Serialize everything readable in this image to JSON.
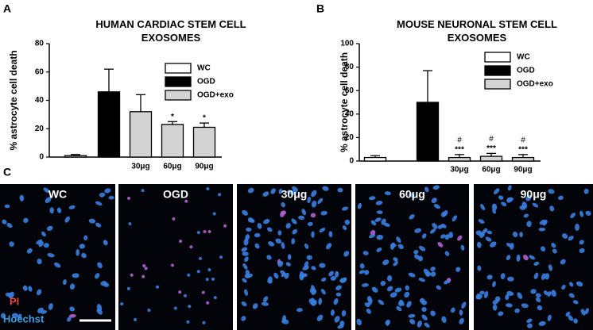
{
  "panel_labels": [
    "A",
    "B",
    "C"
  ],
  "chart_data": [
    {
      "type": "bar",
      "title": "HUMAN CARDIAC STEM CELL EXOSOMES",
      "y_label": "% astrocyte cell death",
      "categories": [
        null,
        null,
        "30μg",
        "60μg",
        "90μg"
      ],
      "values": [
        1,
        46,
        32,
        23,
        21
      ],
      "errors": [
        0.8,
        16,
        12,
        2,
        3
      ],
      "colors": [
        "#ffffff",
        "#000000",
        "#d3d3d3",
        "#d3d3d3",
        "#d3d3d3"
      ],
      "annotations": [
        null,
        null,
        null,
        "*",
        "*"
      ],
      "legend": [
        {
          "name": "WC",
          "color": "#ffffff"
        },
        {
          "name": "OGD",
          "color": "#000000"
        },
        {
          "name": "OGD+exo",
          "color": "#d3d3d3"
        }
      ],
      "ylim": [
        0,
        80
      ],
      "yticks": [
        0,
        20,
        40,
        60,
        80
      ]
    },
    {
      "type": "bar",
      "title": "MOUSE NEURONAL STEM CELL EXOSOMES",
      "y_label": "% astrocyte cell death",
      "categories": [
        null,
        null,
        "30μg",
        "60μg",
        "90μg"
      ],
      "values": [
        3,
        50,
        3,
        4,
        3
      ],
      "errors": [
        1.5,
        27,
        2.5,
        2.5,
        2.5
      ],
      "colors": [
        "#ffffff",
        "#000000",
        "#d3d3d3",
        "#d3d3d3",
        "#d3d3d3"
      ],
      "annotations_top": [
        null,
        null,
        "#",
        "#",
        "#"
      ],
      "annotations": [
        null,
        null,
        "***",
        "***",
        "***"
      ],
      "legend": [
        {
          "name": "WC",
          "color": "#ffffff"
        },
        {
          "name": "OGD",
          "color": "#000000"
        },
        {
          "name": "OGD+exo",
          "color": "#d3d3d3"
        }
      ],
      "ylim": [
        0,
        100
      ],
      "yticks": [
        0,
        20,
        40,
        60,
        80,
        100
      ]
    }
  ],
  "micrographs": {
    "panels": [
      "WC",
      "OGD",
      "30μg",
      "60μg",
      "90μg"
    ],
    "stains": [
      {
        "text": "PI",
        "color": "#e8403a"
      },
      {
        "text": "Hoechst",
        "color": "#3a9de0"
      }
    ]
  }
}
